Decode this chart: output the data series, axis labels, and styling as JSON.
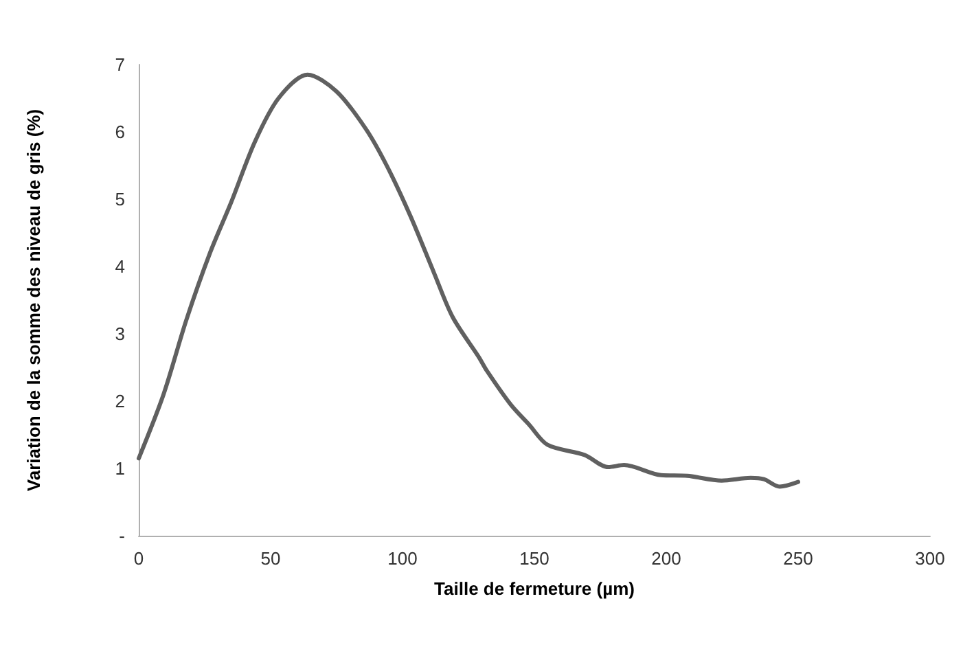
{
  "chart_data": {
    "type": "line",
    "xlabel": "Taille de fermeture (µm)",
    "ylabel": "Variation de la somme des niveau de gris (%)",
    "x": [
      0,
      9.4,
      18,
      27,
      35,
      44,
      53,
      64,
      75,
      86,
      94,
      103,
      112,
      119,
      129,
      132,
      141,
      148,
      155,
      169,
      178,
      184,
      198,
      208,
      221,
      232,
      237,
      243,
      250
    ],
    "series": [
      {
        "color": "#606060",
        "values": [
          1.15,
          2.1,
          3.2,
          4.2,
          4.95,
          5.85,
          6.5,
          6.85,
          6.6,
          6.05,
          5.5,
          4.75,
          3.9,
          3.25,
          2.65,
          2.45,
          1.95,
          1.65,
          1.35,
          1.2,
          1.02,
          1.05,
          0.9,
          0.89,
          0.82,
          0.86,
          0.84,
          0.73,
          0.8
        ]
      }
    ],
    "xlim": [
      0,
      300
    ],
    "xticks": [
      0,
      50,
      100,
      150,
      200,
      250,
      300
    ],
    "ylim": [
      0,
      7
    ],
    "yticks": [
      {
        "value": 0,
        "label": "-"
      },
      1,
      2,
      3,
      4,
      5,
      6,
      7
    ],
    "grid": false,
    "marker": "none",
    "line_style": "solid"
  }
}
